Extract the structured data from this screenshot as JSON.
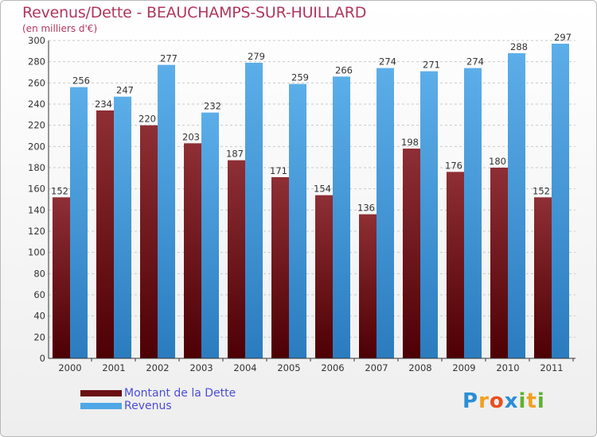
{
  "header": {
    "title": "Revenus/Dette - BEAUCHAMPS-SUR-HUILLARD",
    "subtitle": "(en milliers d'€)"
  },
  "chart_data": {
    "type": "bar",
    "title": "Revenus/Dette - BEAUCHAMPS-SUR-HUILLARD",
    "subtitle": "(en milliers d'€)",
    "categories": [
      "2000",
      "2001",
      "2002",
      "2003",
      "2004",
      "2005",
      "2006",
      "2007",
      "2008",
      "2009",
      "2010",
      "2011"
    ],
    "series": [
      {
        "name": "Montant de la Dette",
        "color": "#7a1f26",
        "values": [
          152,
          234,
          220,
          203,
          187,
          171,
          154,
          136,
          198,
          176,
          180,
          152
        ]
      },
      {
        "name": "Revenus",
        "color": "#4fa7e6",
        "values": [
          256,
          247,
          277,
          232,
          279,
          259,
          266,
          274,
          271,
          274,
          288,
          297
        ]
      }
    ],
    "ylim": [
      0,
      300
    ],
    "yticks": [
      0,
      20,
      40,
      60,
      80,
      100,
      120,
      140,
      160,
      180,
      200,
      220,
      240,
      260,
      280,
      300
    ],
    "grid": true,
    "legend": "bottom-left"
  },
  "legend": {
    "items": [
      {
        "label": "Montant de la Dette",
        "color": "#6b0f14"
      },
      {
        "label": "Revenus",
        "color": "#4fa7e6"
      }
    ]
  },
  "brand": {
    "letters": [
      "P",
      "r",
      "o",
      "x",
      "i",
      "t",
      "i"
    ],
    "colors": [
      "#2a8fd6",
      "#f0a020",
      "#e85020",
      "#2a8fd6",
      "#60b030",
      "#f0a020",
      "#60b030"
    ]
  }
}
